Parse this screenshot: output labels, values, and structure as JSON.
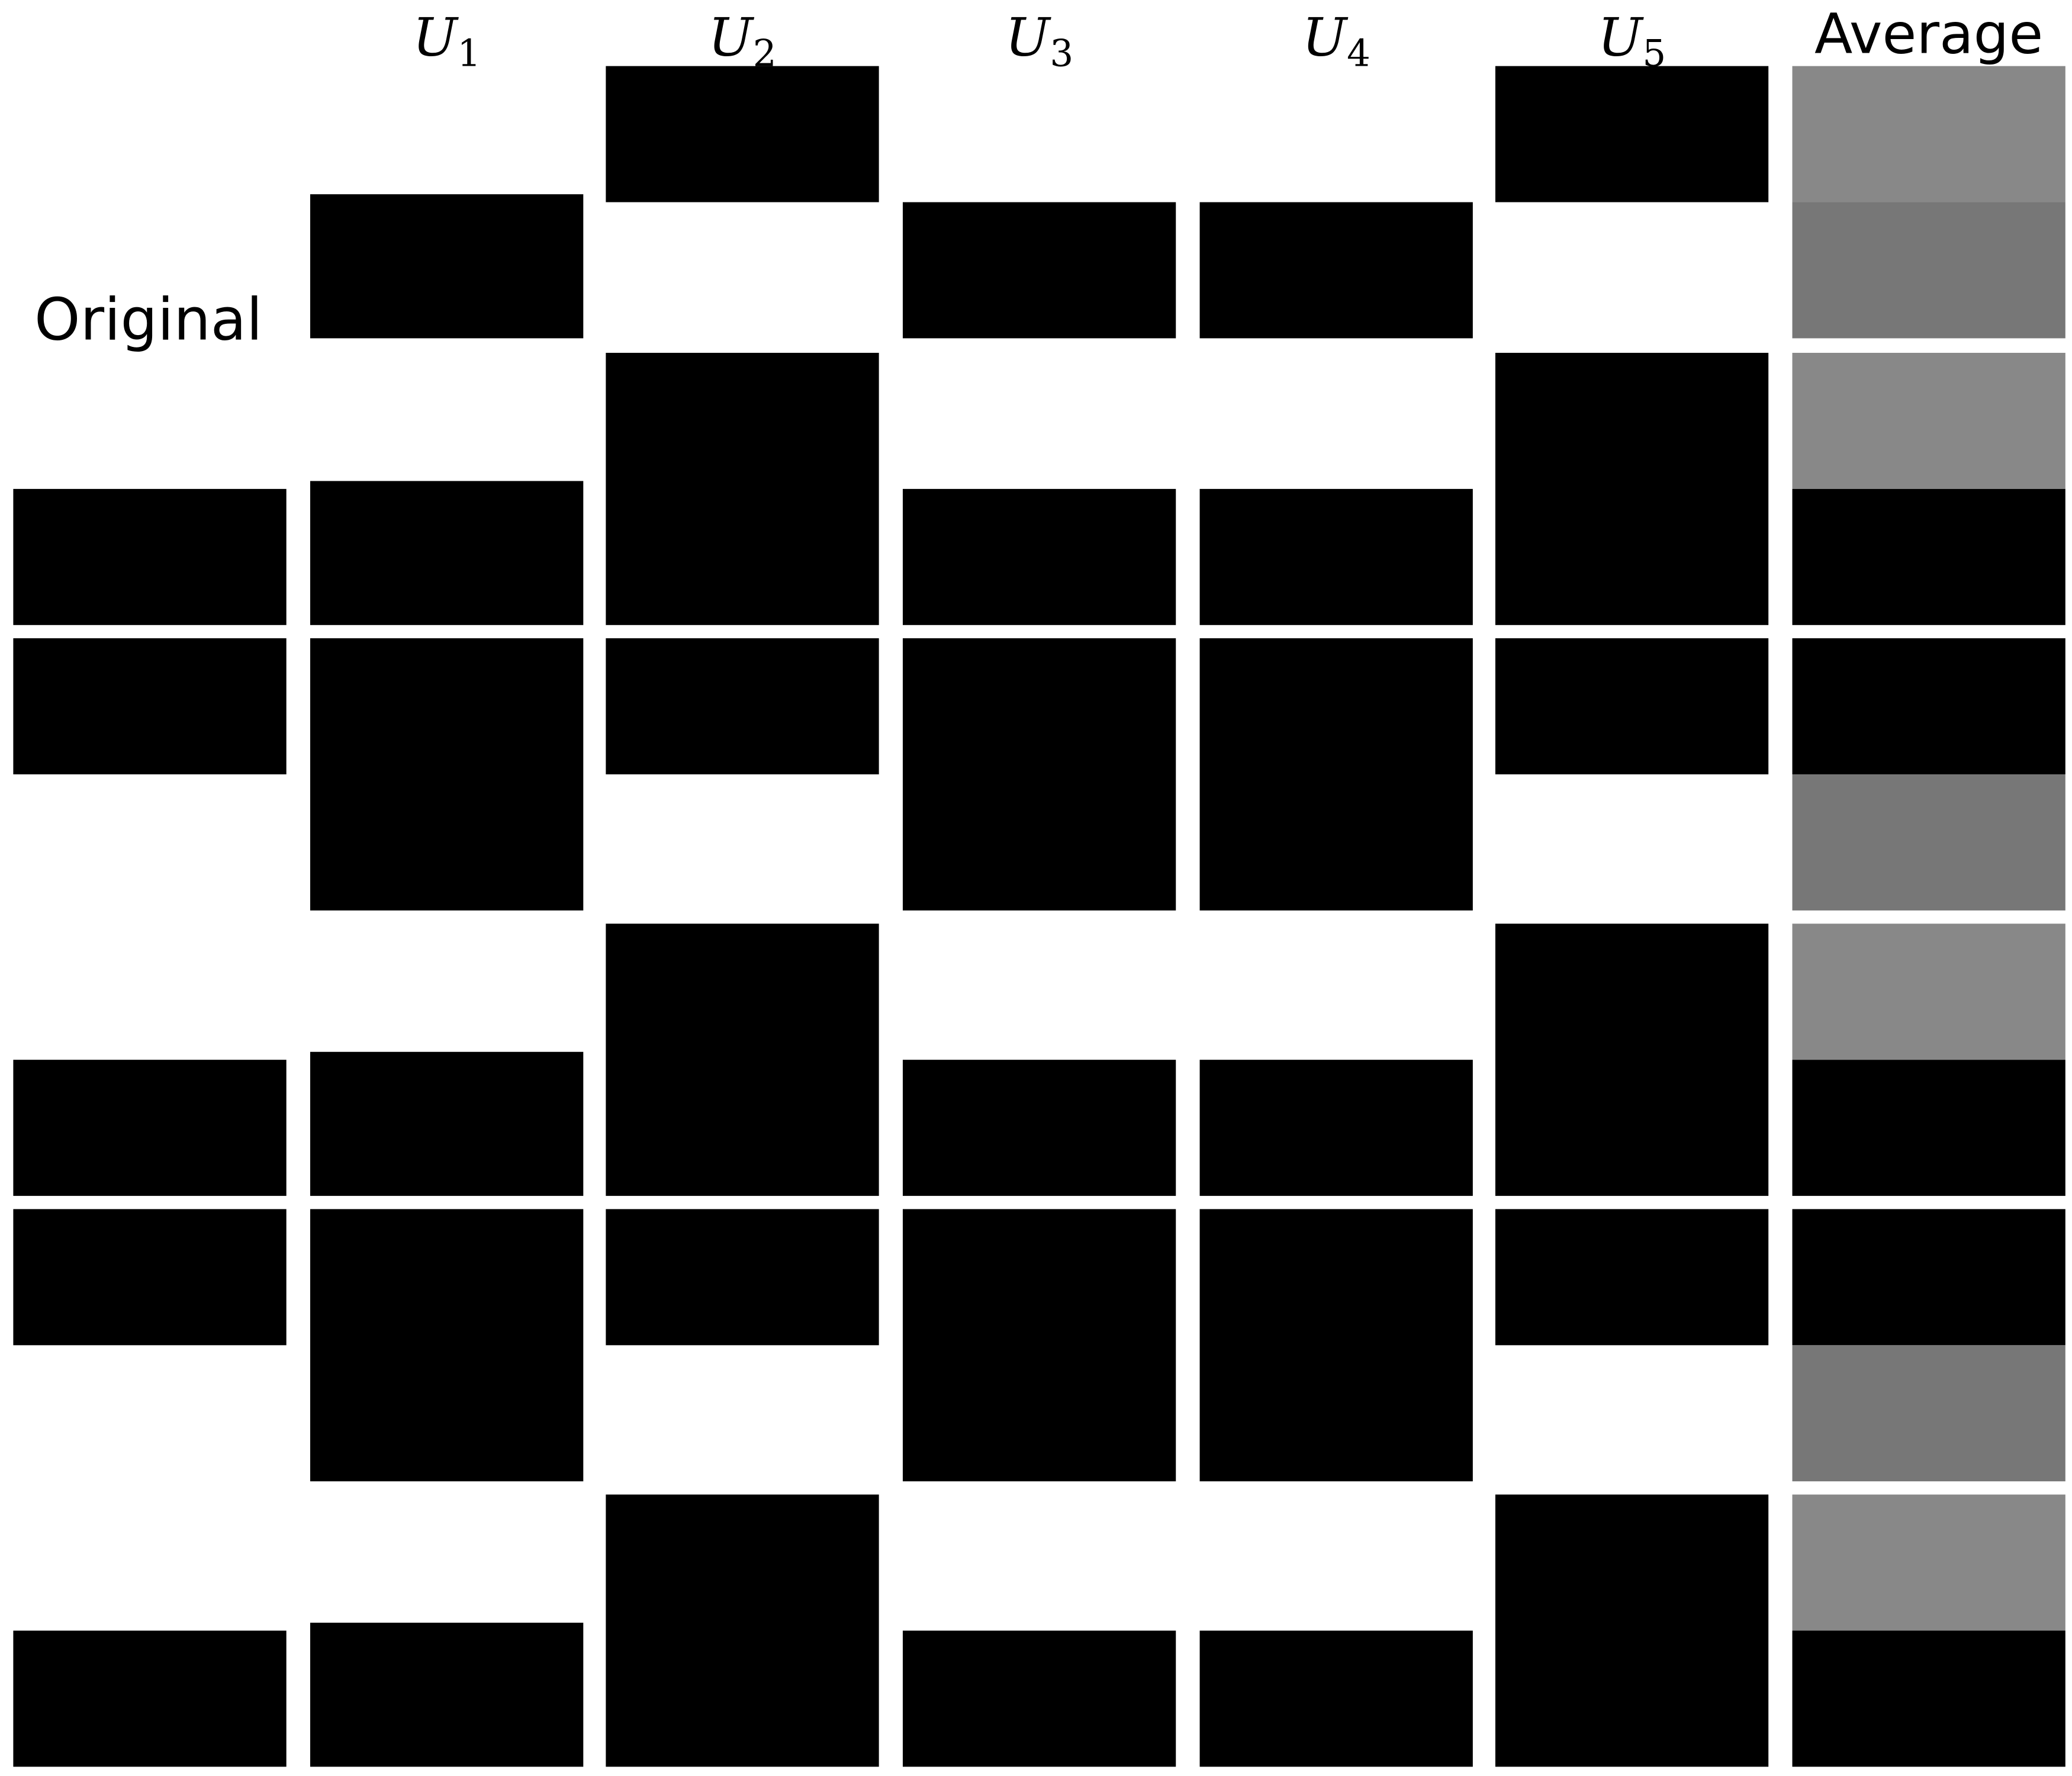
{
  "row_label": "Original",
  "columns": [
    {
      "symbol": "U",
      "index": "1"
    },
    {
      "symbol": "U",
      "index": "2"
    },
    {
      "symbol": "U",
      "index": "3"
    },
    {
      "symbol": "U",
      "index": "4"
    },
    {
      "symbol": "U",
      "index": "5"
    }
  ],
  "average_label": "Average"
}
